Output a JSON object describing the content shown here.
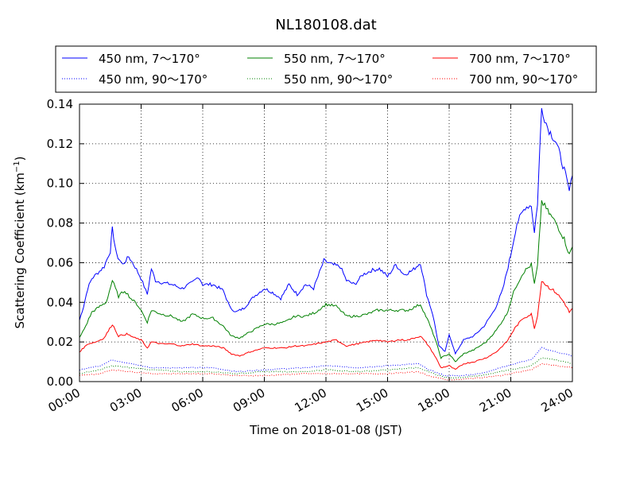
{
  "chart_data": {
    "type": "line",
    "title": "NL180108.dat",
    "xlabel": "Time on 2018-01-08 (JST)",
    "ylabel_main": "Scattering Coefficient (km",
    "ylabel_sup": "−1",
    "ylabel_close": ")",
    "xlim": [
      0,
      24
    ],
    "ylim": [
      0,
      0.14
    ],
    "x_ticks": [
      0,
      3,
      6,
      9,
      12,
      15,
      18,
      21,
      24
    ],
    "x_tick_labels": [
      "00:00",
      "03:00",
      "06:00",
      "09:00",
      "12:00",
      "15:00",
      "18:00",
      "21:00",
      "24:00"
    ],
    "y_ticks": [
      0,
      0.02,
      0.04,
      0.06,
      0.08,
      0.1,
      0.12,
      0.14
    ],
    "y_tick_labels": [
      "0.00",
      "0.02",
      "0.04",
      "0.06",
      "0.08",
      "0.10",
      "0.12",
      "0.14"
    ],
    "grid": true,
    "legend_position": "top, outside plot, 3 columns",
    "series": [
      {
        "name": "450 nm, 7～170°",
        "color": "#0000ff",
        "style": "solid",
        "points": [
          [
            0,
            0.031
          ],
          [
            0.2,
            0.038
          ],
          [
            0.4,
            0.047
          ],
          [
            0.6,
            0.052
          ],
          [
            0.9,
            0.055
          ],
          [
            1.2,
            0.058
          ],
          [
            1.5,
            0.066
          ],
          [
            1.6,
            0.077
          ],
          [
            1.8,
            0.064
          ],
          [
            2.1,
            0.059
          ],
          [
            2.4,
            0.063
          ],
          [
            2.7,
            0.058
          ],
          [
            3.0,
            0.052
          ],
          [
            3.3,
            0.044
          ],
          [
            3.5,
            0.057
          ],
          [
            3.7,
            0.051
          ],
          [
            4.0,
            0.05
          ],
          [
            4.5,
            0.049
          ],
          [
            5.0,
            0.047
          ],
          [
            5.5,
            0.05
          ],
          [
            5.8,
            0.053
          ],
          [
            6.0,
            0.049
          ],
          [
            6.5,
            0.049
          ],
          [
            7.0,
            0.046
          ],
          [
            7.3,
            0.038
          ],
          [
            7.6,
            0.035
          ],
          [
            8.0,
            0.037
          ],
          [
            8.5,
            0.043
          ],
          [
            9.0,
            0.047
          ],
          [
            9.4,
            0.045
          ],
          [
            9.8,
            0.042
          ],
          [
            10.2,
            0.049
          ],
          [
            10.6,
            0.044
          ],
          [
            11.0,
            0.049
          ],
          [
            11.4,
            0.047
          ],
          [
            11.9,
            0.061
          ],
          [
            12.3,
            0.059
          ],
          [
            12.7,
            0.058
          ],
          [
            13.0,
            0.051
          ],
          [
            13.4,
            0.049
          ],
          [
            13.8,
            0.054
          ],
          [
            14.2,
            0.056
          ],
          [
            14.6,
            0.057
          ],
          [
            15.0,
            0.053
          ],
          [
            15.4,
            0.059
          ],
          [
            15.8,
            0.054
          ],
          [
            16.2,
            0.056
          ],
          [
            16.6,
            0.06
          ],
          [
            16.9,
            0.044
          ],
          [
            17.2,
            0.034
          ],
          [
            17.5,
            0.018
          ],
          [
            17.8,
            0.015
          ],
          [
            18.0,
            0.024
          ],
          [
            18.3,
            0.014
          ],
          [
            18.7,
            0.021
          ],
          [
            19.2,
            0.023
          ],
          [
            19.7,
            0.028
          ],
          [
            20.2,
            0.036
          ],
          [
            20.6,
            0.046
          ],
          [
            21.0,
            0.064
          ],
          [
            21.3,
            0.08
          ],
          [
            21.7,
            0.088
          ],
          [
            22.0,
            0.089
          ],
          [
            22.15,
            0.075
          ],
          [
            22.3,
            0.09
          ],
          [
            22.5,
            0.138
          ],
          [
            22.8,
            0.128
          ],
          [
            23.2,
            0.121
          ],
          [
            23.6,
            0.107
          ],
          [
            23.85,
            0.096
          ],
          [
            24.0,
            0.104
          ]
        ]
      },
      {
        "name": "450 nm, 90～170°",
        "color": "#0000ff",
        "style": "dotted",
        "points": [
          [
            0,
            0.006
          ],
          [
            1.0,
            0.008
          ],
          [
            1.6,
            0.011
          ],
          [
            2.5,
            0.009
          ],
          [
            3.5,
            0.007
          ],
          [
            5.0,
            0.007
          ],
          [
            6.5,
            0.007
          ],
          [
            7.6,
            0.005
          ],
          [
            9.0,
            0.006
          ],
          [
            11.0,
            0.007
          ],
          [
            12.0,
            0.008
          ],
          [
            13.5,
            0.007
          ],
          [
            15.0,
            0.008
          ],
          [
            16.5,
            0.009
          ],
          [
            17.0,
            0.006
          ],
          [
            17.8,
            0.003
          ],
          [
            18.5,
            0.003
          ],
          [
            19.5,
            0.004
          ],
          [
            20.5,
            0.007
          ],
          [
            21.5,
            0.01
          ],
          [
            22.0,
            0.011
          ],
          [
            22.5,
            0.017
          ],
          [
            23.2,
            0.015
          ],
          [
            24.0,
            0.013
          ]
        ]
      },
      {
        "name": "550 nm, 7～170°",
        "color": "#008000",
        "style": "solid",
        "points": [
          [
            0,
            0.022
          ],
          [
            0.3,
            0.028
          ],
          [
            0.6,
            0.035
          ],
          [
            1.0,
            0.038
          ],
          [
            1.3,
            0.04
          ],
          [
            1.6,
            0.051
          ],
          [
            1.9,
            0.043
          ],
          [
            2.2,
            0.046
          ],
          [
            2.5,
            0.042
          ],
          [
            2.8,
            0.039
          ],
          [
            3.0,
            0.036
          ],
          [
            3.3,
            0.03
          ],
          [
            3.5,
            0.036
          ],
          [
            4.0,
            0.034
          ],
          [
            4.5,
            0.033
          ],
          [
            5.0,
            0.03
          ],
          [
            5.5,
            0.034
          ],
          [
            6.0,
            0.032
          ],
          [
            6.5,
            0.032
          ],
          [
            7.0,
            0.028
          ],
          [
            7.4,
            0.023
          ],
          [
            7.8,
            0.022
          ],
          [
            8.3,
            0.025
          ],
          [
            9.0,
            0.029
          ],
          [
            9.5,
            0.029
          ],
          [
            10.0,
            0.03
          ],
          [
            10.5,
            0.033
          ],
          [
            11.0,
            0.033
          ],
          [
            11.5,
            0.035
          ],
          [
            12.0,
            0.039
          ],
          [
            12.5,
            0.038
          ],
          [
            13.0,
            0.033
          ],
          [
            13.5,
            0.033
          ],
          [
            14.0,
            0.034
          ],
          [
            14.5,
            0.036
          ],
          [
            15.0,
            0.036
          ],
          [
            15.5,
            0.036
          ],
          [
            16.0,
            0.036
          ],
          [
            16.6,
            0.039
          ],
          [
            17.0,
            0.03
          ],
          [
            17.3,
            0.022
          ],
          [
            17.6,
            0.012
          ],
          [
            18.0,
            0.014
          ],
          [
            18.3,
            0.01
          ],
          [
            18.7,
            0.014
          ],
          [
            19.2,
            0.016
          ],
          [
            19.8,
            0.02
          ],
          [
            20.3,
            0.026
          ],
          [
            20.8,
            0.034
          ],
          [
            21.2,
            0.047
          ],
          [
            21.6,
            0.055
          ],
          [
            22.0,
            0.059
          ],
          [
            22.15,
            0.049
          ],
          [
            22.3,
            0.058
          ],
          [
            22.5,
            0.091
          ],
          [
            22.8,
            0.086
          ],
          [
            23.2,
            0.08
          ],
          [
            23.6,
            0.072
          ],
          [
            23.85,
            0.064
          ],
          [
            24.0,
            0.068
          ]
        ]
      },
      {
        "name": "550 nm, 90～170°",
        "color": "#008000",
        "style": "dotted",
        "points": [
          [
            0,
            0.004
          ],
          [
            1.0,
            0.006
          ],
          [
            1.6,
            0.008
          ],
          [
            2.5,
            0.007
          ],
          [
            3.5,
            0.006
          ],
          [
            5.0,
            0.005
          ],
          [
            6.5,
            0.005
          ],
          [
            7.6,
            0.004
          ],
          [
            9.0,
            0.005
          ],
          [
            11.0,
            0.005
          ],
          [
            12.0,
            0.006
          ],
          [
            13.5,
            0.005
          ],
          [
            15.0,
            0.006
          ],
          [
            16.5,
            0.007
          ],
          [
            17.0,
            0.005
          ],
          [
            17.8,
            0.002
          ],
          [
            18.5,
            0.002
          ],
          [
            19.5,
            0.003
          ],
          [
            20.5,
            0.005
          ],
          [
            21.5,
            0.007
          ],
          [
            22.0,
            0.008
          ],
          [
            22.5,
            0.012
          ],
          [
            23.2,
            0.011
          ],
          [
            24.0,
            0.009
          ]
        ]
      },
      {
        "name": "700 nm, 7～170°",
        "color": "#ff0000",
        "style": "solid",
        "points": [
          [
            0,
            0.015
          ],
          [
            0.4,
            0.019
          ],
          [
            0.8,
            0.02
          ],
          [
            1.2,
            0.022
          ],
          [
            1.6,
            0.029
          ],
          [
            1.9,
            0.023
          ],
          [
            2.3,
            0.024
          ],
          [
            2.7,
            0.022
          ],
          [
            3.0,
            0.021
          ],
          [
            3.3,
            0.017
          ],
          [
            3.5,
            0.02
          ],
          [
            4.0,
            0.019
          ],
          [
            4.5,
            0.019
          ],
          [
            5.0,
            0.018
          ],
          [
            5.5,
            0.019
          ],
          [
            6.0,
            0.018
          ],
          [
            6.5,
            0.018
          ],
          [
            7.0,
            0.017
          ],
          [
            7.4,
            0.014
          ],
          [
            7.8,
            0.013
          ],
          [
            8.3,
            0.015
          ],
          [
            9.0,
            0.017
          ],
          [
            9.5,
            0.017
          ],
          [
            10.0,
            0.017
          ],
          [
            10.5,
            0.018
          ],
          [
            11.0,
            0.018
          ],
          [
            11.5,
            0.019
          ],
          [
            12.0,
            0.02
          ],
          [
            12.5,
            0.021
          ],
          [
            13.0,
            0.018
          ],
          [
            13.5,
            0.019
          ],
          [
            14.0,
            0.02
          ],
          [
            14.5,
            0.021
          ],
          [
            15.0,
            0.02
          ],
          [
            15.5,
            0.021
          ],
          [
            16.0,
            0.021
          ],
          [
            16.6,
            0.023
          ],
          [
            17.0,
            0.018
          ],
          [
            17.3,
            0.013
          ],
          [
            17.6,
            0.007
          ],
          [
            18.0,
            0.008
          ],
          [
            18.3,
            0.006
          ],
          [
            18.7,
            0.009
          ],
          [
            19.2,
            0.01
          ],
          [
            19.8,
            0.012
          ],
          [
            20.3,
            0.015
          ],
          [
            20.8,
            0.02
          ],
          [
            21.2,
            0.027
          ],
          [
            21.6,
            0.032
          ],
          [
            22.0,
            0.034
          ],
          [
            22.15,
            0.027
          ],
          [
            22.3,
            0.033
          ],
          [
            22.5,
            0.051
          ],
          [
            22.8,
            0.048
          ],
          [
            23.2,
            0.045
          ],
          [
            23.6,
            0.04
          ],
          [
            23.85,
            0.035
          ],
          [
            24.0,
            0.037
          ]
        ]
      },
      {
        "name": "700 nm, 90～170°",
        "color": "#ff0000",
        "style": "dotted",
        "points": [
          [
            0,
            0.003
          ],
          [
            1.0,
            0.004
          ],
          [
            1.6,
            0.006
          ],
          [
            2.5,
            0.005
          ],
          [
            3.5,
            0.004
          ],
          [
            5.0,
            0.004
          ],
          [
            6.5,
            0.004
          ],
          [
            7.6,
            0.003
          ],
          [
            9.0,
            0.003
          ],
          [
            11.0,
            0.004
          ],
          [
            12.0,
            0.004
          ],
          [
            13.5,
            0.004
          ],
          [
            15.0,
            0.004
          ],
          [
            16.5,
            0.005
          ],
          [
            17.0,
            0.003
          ],
          [
            17.8,
            0.001
          ],
          [
            18.5,
            0.001
          ],
          [
            19.5,
            0.002
          ],
          [
            20.5,
            0.003
          ],
          [
            21.5,
            0.005
          ],
          [
            22.0,
            0.006
          ],
          [
            22.5,
            0.009
          ],
          [
            23.2,
            0.008
          ],
          [
            24.0,
            0.007
          ]
        ]
      }
    ]
  }
}
